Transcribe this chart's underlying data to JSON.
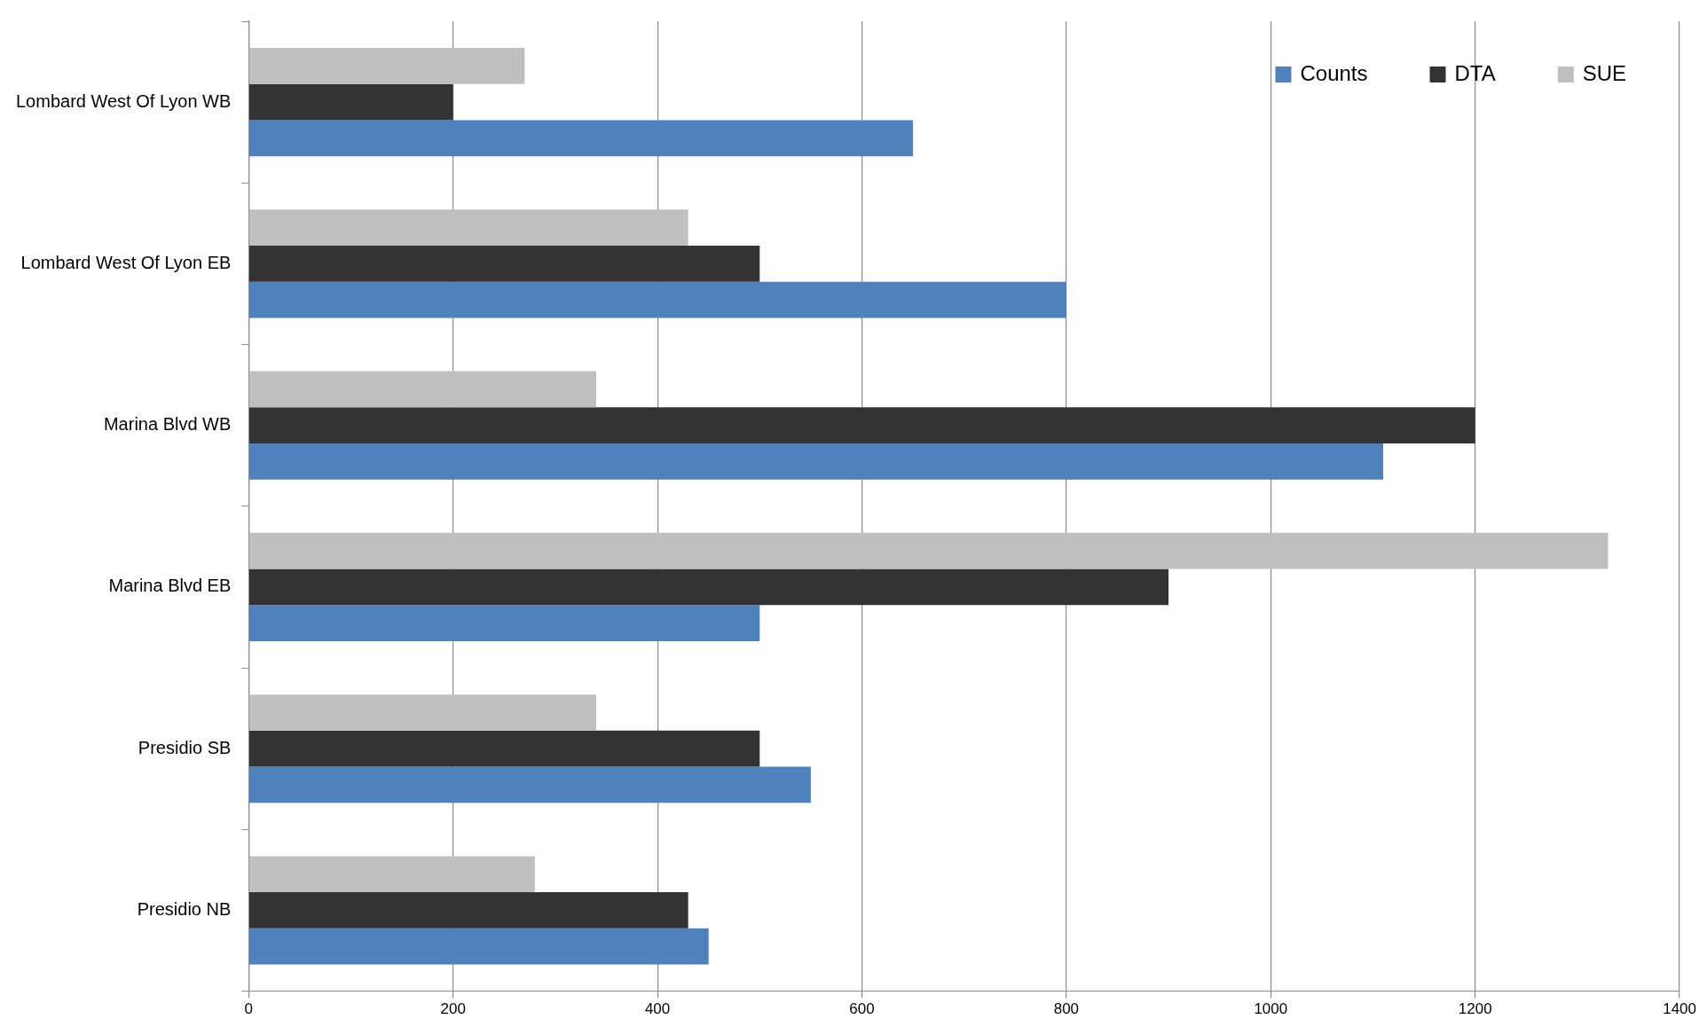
{
  "chart_data": {
    "type": "bar",
    "orientation": "horizontal",
    "categories": [
      "Lombard West Of Lyon WB",
      "Lombard West Of Lyon EB",
      "Marina Blvd WB",
      "Marina Blvd EB",
      "Presidio SB",
      "Presidio NB"
    ],
    "series": [
      {
        "name": "Counts",
        "color": "#4f81bd",
        "values": [
          650,
          800,
          1110,
          500,
          550,
          450
        ]
      },
      {
        "name": "DTA",
        "color": "#333333",
        "values": [
          200,
          500,
          1200,
          900,
          500,
          430
        ]
      },
      {
        "name": "SUE",
        "color": "#bfbfbf",
        "values": [
          270,
          430,
          340,
          1330,
          340,
          280
        ]
      }
    ],
    "xlim": [
      0,
      1400
    ],
    "xticks": [
      0,
      200,
      400,
      600,
      800,
      1000,
      1200,
      1400
    ],
    "grid": "x",
    "legend": "top right"
  }
}
